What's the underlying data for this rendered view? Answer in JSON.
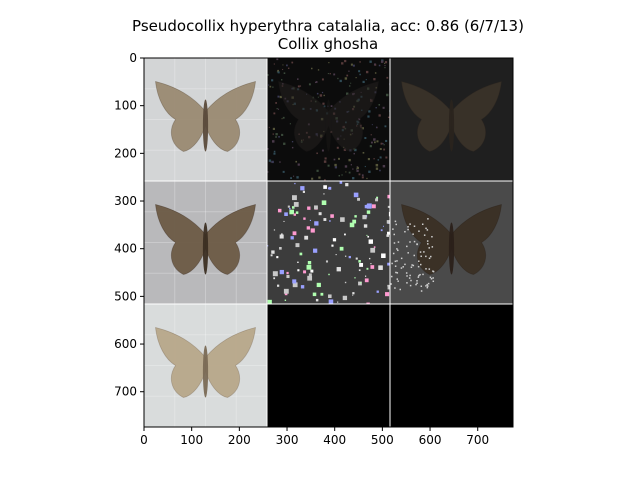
{
  "chart_data": {
    "type": "image-grid",
    "title": "Pseudocollix hyperythra catalalia, acc: 0.86 (6/7/13)",
    "subtitle": "Collix ghosha",
    "xlim": [
      0,
      774
    ],
    "ylim": [
      774,
      0
    ],
    "x_ticks": [
      0,
      100,
      200,
      300,
      400,
      500,
      600,
      700
    ],
    "y_ticks": [
      0,
      100,
      200,
      300,
      400,
      500,
      600,
      700
    ],
    "grid_rows": 3,
    "grid_cols": 3,
    "panel_size": 258,
    "panels": [
      {
        "row": 0,
        "col": 0,
        "kind": "moth-photo",
        "background": "#d3d5d6",
        "wing": "#9a8a72",
        "body": "#5a4a3a"
      },
      {
        "row": 0,
        "col": 1,
        "kind": "noise-map",
        "background": "#0c0c0c",
        "wing": "#262220",
        "body": "#1a1716"
      },
      {
        "row": 0,
        "col": 2,
        "kind": "masked-moth",
        "background": "#1f1f1f",
        "wing": "#3a3329",
        "body": "#2a241e"
      },
      {
        "row": 1,
        "col": 0,
        "kind": "moth-photo",
        "background": "#b9b9bb",
        "wing": "#6b5a45",
        "body": "#3b2e22"
      },
      {
        "row": 1,
        "col": 1,
        "kind": "noise-map",
        "background": "#3c3c3c",
        "wing": "#4a4a4a",
        "body": "#3a3a3a"
      },
      {
        "row": 1,
        "col": 2,
        "kind": "masked-moth",
        "background": "#4a4a4a",
        "wing": "#3a2f24",
        "body": "#2a2019"
      },
      {
        "row": 2,
        "col": 0,
        "kind": "moth-photo",
        "background": "#d9dcdc",
        "wing": "#b7a789",
        "body": "#7a6a55"
      },
      {
        "row": 2,
        "col": 1,
        "kind": "blank",
        "background": "#000000"
      },
      {
        "row": 2,
        "col": 2,
        "kind": "blank",
        "background": "#000000"
      }
    ]
  }
}
